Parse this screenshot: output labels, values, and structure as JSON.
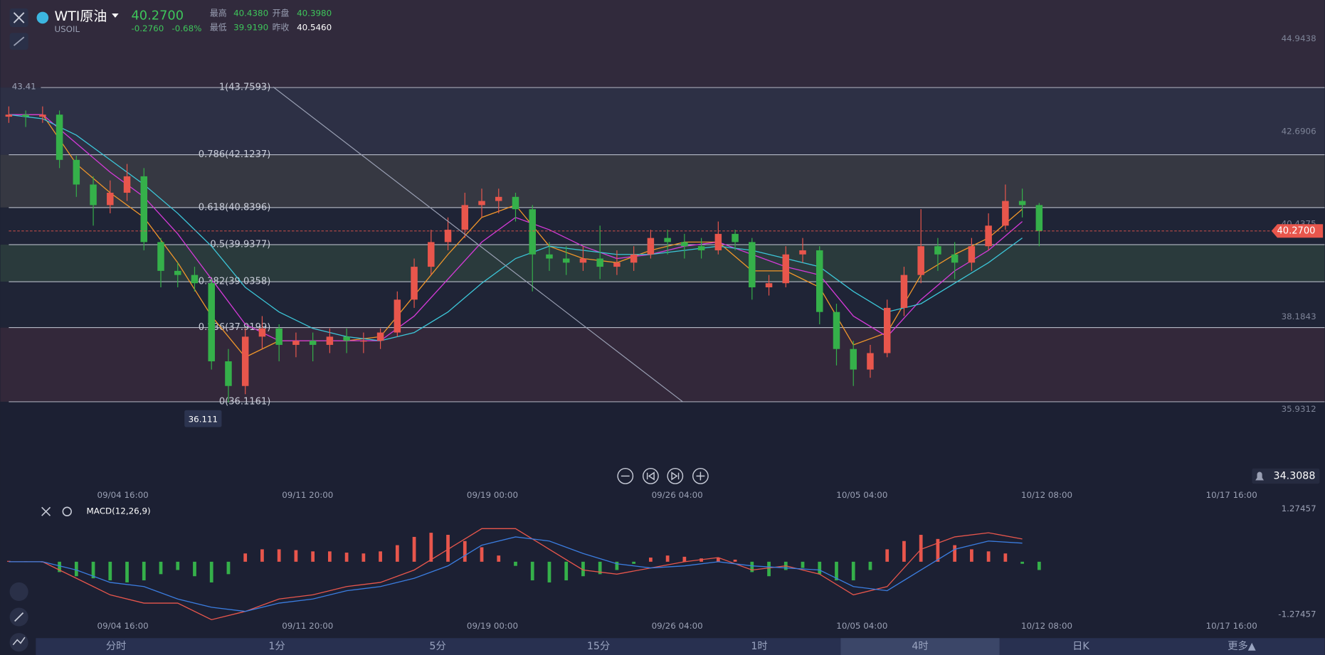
{
  "header": {
    "name": "WTI原油",
    "symbol": "USOIL",
    "price": "40.2700",
    "change": "-0.2760",
    "change_pct": "-0.68%",
    "stats": [
      {
        "label": "最高",
        "value": "40.4380"
      },
      {
        "label": "开盘",
        "value": "40.3980"
      },
      {
        "label": "最低",
        "value": "39.9190"
      },
      {
        "label": "昨收",
        "value": "40.5460"
      }
    ]
  },
  "chart_data": {
    "type": "candlestick",
    "up_color": "#e8564c",
    "down_color": "#35b04a",
    "ylim": [
      35.9312,
      44.9438
    ],
    "yticks": [
      44.9438,
      42.6906,
      40.4375,
      38.1843,
      35.9312
    ],
    "last_price": {
      "value": 40.27,
      "label": "40.2700"
    },
    "high_marker": 43.41,
    "low_marker": 36.111,
    "x": [
      "09/04 16:00",
      "09/11 20:00",
      "09/19 00:00",
      "09/26 04:00",
      "10/05 04:00",
      "10/12 08:00",
      "10/17 16:00"
    ],
    "fib": [
      {
        "label": "1(43.7593)",
        "value": 43.7593
      },
      {
        "label": "0.786(42.1237)",
        "value": 42.1237
      },
      {
        "label": "0.618(40.8396)",
        "value": 40.8396
      },
      {
        "label": "0.5(39.9377)",
        "value": 39.9377
      },
      {
        "label": "0.382(39.0358)",
        "value": 39.0358
      },
      {
        "label": "0.236(37.9199)",
        "value": 37.9199
      },
      {
        "label": "0(36.1161)",
        "value": 36.1161
      }
    ],
    "candles": [
      [
        43.05,
        43.3,
        42.9,
        43.1
      ],
      [
        43.1,
        43.2,
        42.8,
        43.05
      ],
      [
        43.05,
        43.3,
        42.9,
        43.1
      ],
      [
        43.1,
        43.2,
        41.8,
        42.0
      ],
      [
        42.0,
        42.1,
        41.1,
        41.4
      ],
      [
        41.4,
        41.6,
        40.4,
        40.9
      ],
      [
        40.9,
        41.5,
        40.7,
        41.2
      ],
      [
        41.2,
        41.9,
        41.0,
        41.6
      ],
      [
        41.6,
        41.8,
        39.8,
        40.0
      ],
      [
        40.0,
        40.1,
        38.9,
        39.3
      ],
      [
        39.3,
        39.5,
        38.9,
        39.2
      ],
      [
        39.2,
        39.4,
        38.8,
        39.0
      ],
      [
        39.0,
        39.1,
        36.9,
        37.1
      ],
      [
        37.1,
        37.4,
        36.1,
        36.5
      ],
      [
        36.5,
        37.9,
        36.3,
        37.7
      ],
      [
        37.7,
        38.2,
        37.4,
        37.9
      ],
      [
        37.9,
        38.0,
        37.1,
        37.5
      ],
      [
        37.5,
        37.8,
        37.2,
        37.6
      ],
      [
        37.6,
        37.8,
        37.1,
        37.5
      ],
      [
        37.5,
        37.9,
        37.3,
        37.7
      ],
      [
        37.7,
        37.9,
        37.3,
        37.6
      ],
      [
        37.6,
        37.8,
        37.3,
        37.6
      ],
      [
        37.6,
        37.9,
        37.4,
        37.8
      ],
      [
        37.8,
        38.8,
        37.7,
        38.6
      ],
      [
        38.6,
        39.6,
        38.4,
        39.4
      ],
      [
        39.4,
        40.3,
        39.2,
        40.0
      ],
      [
        40.0,
        40.6,
        39.8,
        40.3
      ],
      [
        40.3,
        41.2,
        40.1,
        40.9
      ],
      [
        40.9,
        41.3,
        40.6,
        41.0
      ],
      [
        41.0,
        41.3,
        40.7,
        41.1
      ],
      [
        41.1,
        41.2,
        40.5,
        40.8
      ],
      [
        40.8,
        40.9,
        38.8,
        39.7
      ],
      [
        39.7,
        40.0,
        39.3,
        39.6
      ],
      [
        39.6,
        39.9,
        39.2,
        39.5
      ],
      [
        39.5,
        39.9,
        39.3,
        39.6
      ],
      [
        39.6,
        40.4,
        39.1,
        39.4
      ],
      [
        39.4,
        39.8,
        39.2,
        39.5
      ],
      [
        39.5,
        39.9,
        39.3,
        39.7
      ],
      [
        39.7,
        40.3,
        39.6,
        40.1
      ],
      [
        40.1,
        40.3,
        39.7,
        40.0
      ],
      [
        40.0,
        40.2,
        39.6,
        39.9
      ],
      [
        39.9,
        40.1,
        39.6,
        39.8
      ],
      [
        39.8,
        40.5,
        39.7,
        40.2
      ],
      [
        40.2,
        40.3,
        39.8,
        40.0
      ],
      [
        40.0,
        40.1,
        38.6,
        38.9
      ],
      [
        38.9,
        39.2,
        38.7,
        39.0
      ],
      [
        39.0,
        39.9,
        38.9,
        39.7
      ],
      [
        39.7,
        40.1,
        39.5,
        39.8
      ],
      [
        39.8,
        39.9,
        38.0,
        38.3
      ],
      [
        38.3,
        38.5,
        37.0,
        37.4
      ],
      [
        37.4,
        37.6,
        36.5,
        36.9
      ],
      [
        36.9,
        37.5,
        36.7,
        37.3
      ],
      [
        37.3,
        38.6,
        37.2,
        38.4
      ],
      [
        38.4,
        39.4,
        38.2,
        39.2
      ],
      [
        39.2,
        40.8,
        39.0,
        39.9
      ],
      [
        39.9,
        40.1,
        39.3,
        39.7
      ],
      [
        39.7,
        40.0,
        39.1,
        39.5
      ],
      [
        39.5,
        40.1,
        39.3,
        39.9
      ],
      [
        39.9,
        40.7,
        39.8,
        40.4
      ],
      [
        40.4,
        41.4,
        40.3,
        41.0
      ],
      [
        41.0,
        41.3,
        40.6,
        40.9
      ],
      [
        40.9,
        40.95,
        39.9,
        40.27
      ]
    ],
    "ma": [
      {
        "color": "#f0962a",
        "values": [
          43.1,
          43.1,
          41.9,
          41.2,
          40.6,
          39.5,
          38.2,
          37.2,
          37.6,
          37.6,
          37.6,
          37.7,
          38.7,
          39.7,
          40.6,
          40.9,
          39.9,
          39.6,
          39.5,
          39.8,
          40.0,
          40.0,
          39.3,
          39.3,
          38.9,
          37.5,
          37.8,
          39.2,
          39.7,
          40.1,
          40.8
        ]
      },
      {
        "color": "#d43ad8",
        "values": [
          43.1,
          43.1,
          42.4,
          41.7,
          41.1,
          40.2,
          39.1,
          38.0,
          37.6,
          37.6,
          37.6,
          37.6,
          38.2,
          39.1,
          40.0,
          40.6,
          40.3,
          39.9,
          39.6,
          39.7,
          39.9,
          40.0,
          39.7,
          39.4,
          39.2,
          38.2,
          37.7,
          38.6,
          39.3,
          39.8,
          40.5
        ]
      },
      {
        "color": "#3cc6d8",
        "values": [
          43.1,
          43.0,
          42.6,
          42.0,
          41.4,
          40.7,
          39.9,
          38.9,
          38.3,
          37.9,
          37.7,
          37.6,
          37.8,
          38.3,
          39.0,
          39.6,
          39.9,
          39.8,
          39.7,
          39.7,
          39.8,
          39.9,
          39.8,
          39.6,
          39.4,
          38.8,
          38.3,
          38.5,
          39.0,
          39.5,
          40.1
        ]
      }
    ]
  },
  "macd": {
    "type": "bar",
    "title": "MACD(12,26,9)",
    "ylim": [
      -1.27457,
      1.27457
    ],
    "yticks": [
      1.27457,
      -1.27457
    ],
    "histogram": [
      0.02,
      0.01,
      0.0,
      -0.25,
      -0.35,
      -0.4,
      -0.45,
      -0.5,
      -0.45,
      -0.3,
      -0.2,
      -0.35,
      -0.5,
      -0.3,
      0.2,
      0.3,
      0.3,
      0.28,
      0.25,
      0.25,
      0.22,
      0.2,
      0.25,
      0.4,
      0.6,
      0.7,
      0.65,
      0.5,
      0.35,
      0.15,
      -0.1,
      -0.45,
      -0.5,
      -0.45,
      -0.35,
      -0.3,
      -0.2,
      -0.05,
      0.1,
      0.15,
      0.12,
      0.08,
      0.1,
      0.05,
      -0.25,
      -0.35,
      -0.2,
      -0.15,
      -0.3,
      -0.45,
      -0.45,
      -0.2,
      0.3,
      0.5,
      0.65,
      0.55,
      0.4,
      0.3,
      0.25,
      0.2,
      -0.05,
      -0.2
    ],
    "series": [
      {
        "color": "#e8564c",
        "values": [
          0,
          0,
          -0.4,
          -0.8,
          -1.0,
          -1.0,
          -1.4,
          -1.2,
          -0.9,
          -0.8,
          -0.6,
          -0.5,
          -0.2,
          0.3,
          0.8,
          0.8,
          0.3,
          -0.2,
          -0.3,
          -0.15,
          0.0,
          0.1,
          -0.2,
          -0.1,
          -0.3,
          -0.8,
          -0.6,
          0.3,
          0.6,
          0.7,
          0.55
        ]
      },
      {
        "color": "#3b7de0",
        "values": [
          0,
          0,
          -0.2,
          -0.5,
          -0.6,
          -0.9,
          -1.1,
          -1.2,
          -1.0,
          -0.9,
          -0.7,
          -0.6,
          -0.4,
          -0.1,
          0.4,
          0.6,
          0.5,
          0.2,
          -0.05,
          -0.15,
          -0.1,
          0.0,
          -0.1,
          -0.15,
          -0.2,
          -0.6,
          -0.7,
          -0.2,
          0.3,
          0.5,
          0.45
        ]
      }
    ]
  },
  "bell_value": 34.3088,
  "tabs": [
    "分时",
    "1分",
    "5分",
    "15分",
    "1时",
    "4时",
    "日K",
    "更多▲"
  ],
  "active_tab": 5
}
